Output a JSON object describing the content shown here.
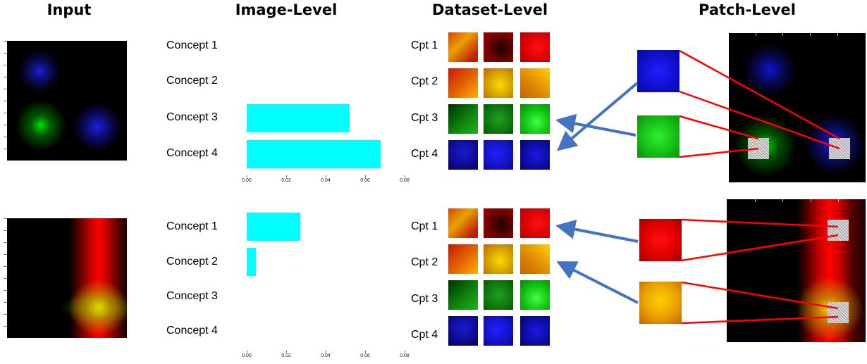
{
  "headers": {
    "input": "Input",
    "image_level": "Image-Level",
    "dataset_level": "Dataset-Level",
    "patch_level": "Patch-Level"
  },
  "colors": {
    "bar": "#00ffff",
    "connector": "#ff0000",
    "arrow": "#4472c4"
  },
  "rows": [
    {
      "concepts": [
        {
          "label": "Concept 1",
          "value": 0
        },
        {
          "label": "Concept 2",
          "value": 0
        },
        {
          "label": "Concept 3",
          "value": 0.052
        },
        {
          "label": "Concept 4",
          "value": 0.068
        }
      ],
      "xticks": [
        "0.00",
        "0.02",
        "0.04",
        "0.06",
        "0.08"
      ],
      "cpt_labels": [
        "Cpt 1",
        "Cpt 2",
        "Cpt 3",
        "Cpt 4"
      ]
    },
    {
      "concepts": [
        {
          "label": "Concept 1",
          "value": 0.027
        },
        {
          "label": "Concept 2",
          "value": 0.0045
        },
        {
          "label": "Concept 3",
          "value": 0
        },
        {
          "label": "Concept 4",
          "value": 0
        }
      ],
      "xticks": [
        "0.00",
        "0.02",
        "0.04",
        "0.06",
        "0.08"
      ],
      "cpt_labels": [
        "Cpt 1",
        "Cpt 2",
        "Cpt 3",
        "Cpt 4"
      ]
    }
  ]
}
